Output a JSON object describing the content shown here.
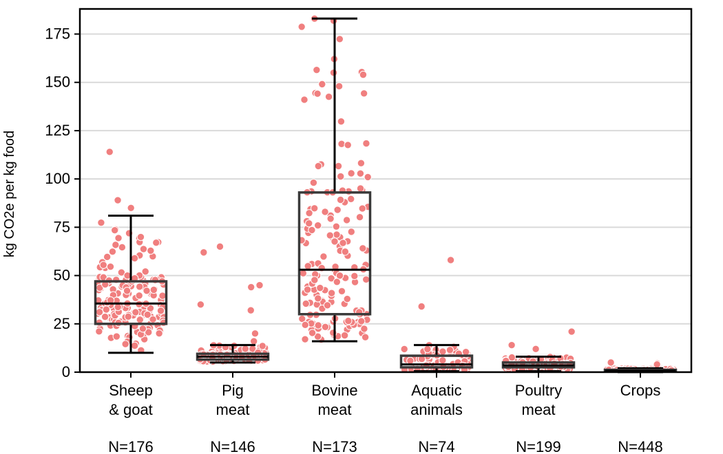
{
  "chart_data": {
    "type": "box",
    "ylabel": "kg CO2e per kg food",
    "xlabel": "",
    "ylim": [
      0,
      188
    ],
    "yticks": [
      0,
      25,
      50,
      75,
      100,
      125,
      150,
      175
    ],
    "grid": "horizontal",
    "colors": {
      "points": "#f07f7f",
      "point_edge": "#ffffff",
      "box": "#3a3a3a",
      "whisker": "#000000",
      "grid": "#d9d9d9",
      "frame": "#000000"
    },
    "categories": [
      {
        "label_lines": [
          "Sheep",
          "& goat"
        ],
        "n_label": "N=176",
        "box": {
          "q1": 25,
          "median": 35.5,
          "q3": 47,
          "whisker_low": 10,
          "whisker_high": 81
        },
        "outliers": [
          114,
          89,
          85
        ]
      },
      {
        "label_lines": [
          "Pig",
          "meat"
        ],
        "n_label": "N=146",
        "box": {
          "q1": 6.5,
          "median": 8,
          "q3": 9.5,
          "whisker_low": 5,
          "whisker_high": 14
        },
        "outliers": [
          65,
          62,
          45,
          44,
          35,
          32,
          20,
          16
        ]
      },
      {
        "label_lines": [
          "Bovine",
          "meat"
        ],
        "n_label": "N=173",
        "box": {
          "q1": 30,
          "median": 53,
          "q3": 93,
          "whisker_low": 16,
          "whisker_high": 183
        },
        "outliers": [
          183,
          155,
          148
        ]
      },
      {
        "label_lines": [
          "Aquatic",
          "animals"
        ],
        "n_label": "N=74",
        "box": {
          "q1": 2.5,
          "median": 4,
          "q3": 8.5,
          "whisker_low": 0.5,
          "whisker_high": 14
        },
        "outliers": [
          58,
          34
        ]
      },
      {
        "label_lines": [
          "Poultry",
          "meat"
        ],
        "n_label": "N=199",
        "box": {
          "q1": 2.5,
          "median": 3.5,
          "q3": 5,
          "whisker_low": 0.5,
          "whisker_high": 8
        },
        "outliers": [
          21,
          14,
          12
        ]
      },
      {
        "label_lines": [
          "Crops"
        ],
        "n_label": "N=448",
        "box": {
          "q1": 0.3,
          "median": 0.7,
          "q3": 1.2,
          "whisker_low": 0,
          "whisker_high": 2
        },
        "outliers": [
          5,
          4.5,
          4
        ]
      }
    ]
  }
}
